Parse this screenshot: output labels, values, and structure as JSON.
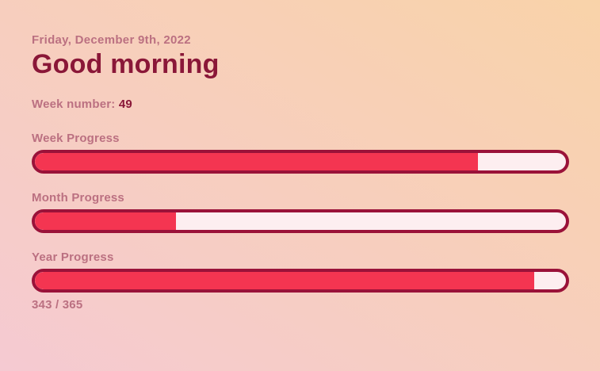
{
  "header": {
    "date": "Friday, December 9th, 2022",
    "greeting": "Good morning",
    "week_number_label": "Week number:",
    "week_number_value": "49"
  },
  "progress": {
    "week": {
      "label": "Week Progress",
      "percent": 83.4
    },
    "month": {
      "label": "Month Progress",
      "percent": 26.6
    },
    "year": {
      "label": "Year Progress",
      "percent": 94.0,
      "detail": "343 / 365"
    }
  },
  "colors": {
    "bg_from": "#f5cad2",
    "bg_to": "#f9d3a9",
    "text_muted": "#bb7081",
    "text_strong": "#8a1738",
    "bar_border": "#9a1239",
    "bar_track": "#fdeef0",
    "bar_fill": "#f43551"
  }
}
